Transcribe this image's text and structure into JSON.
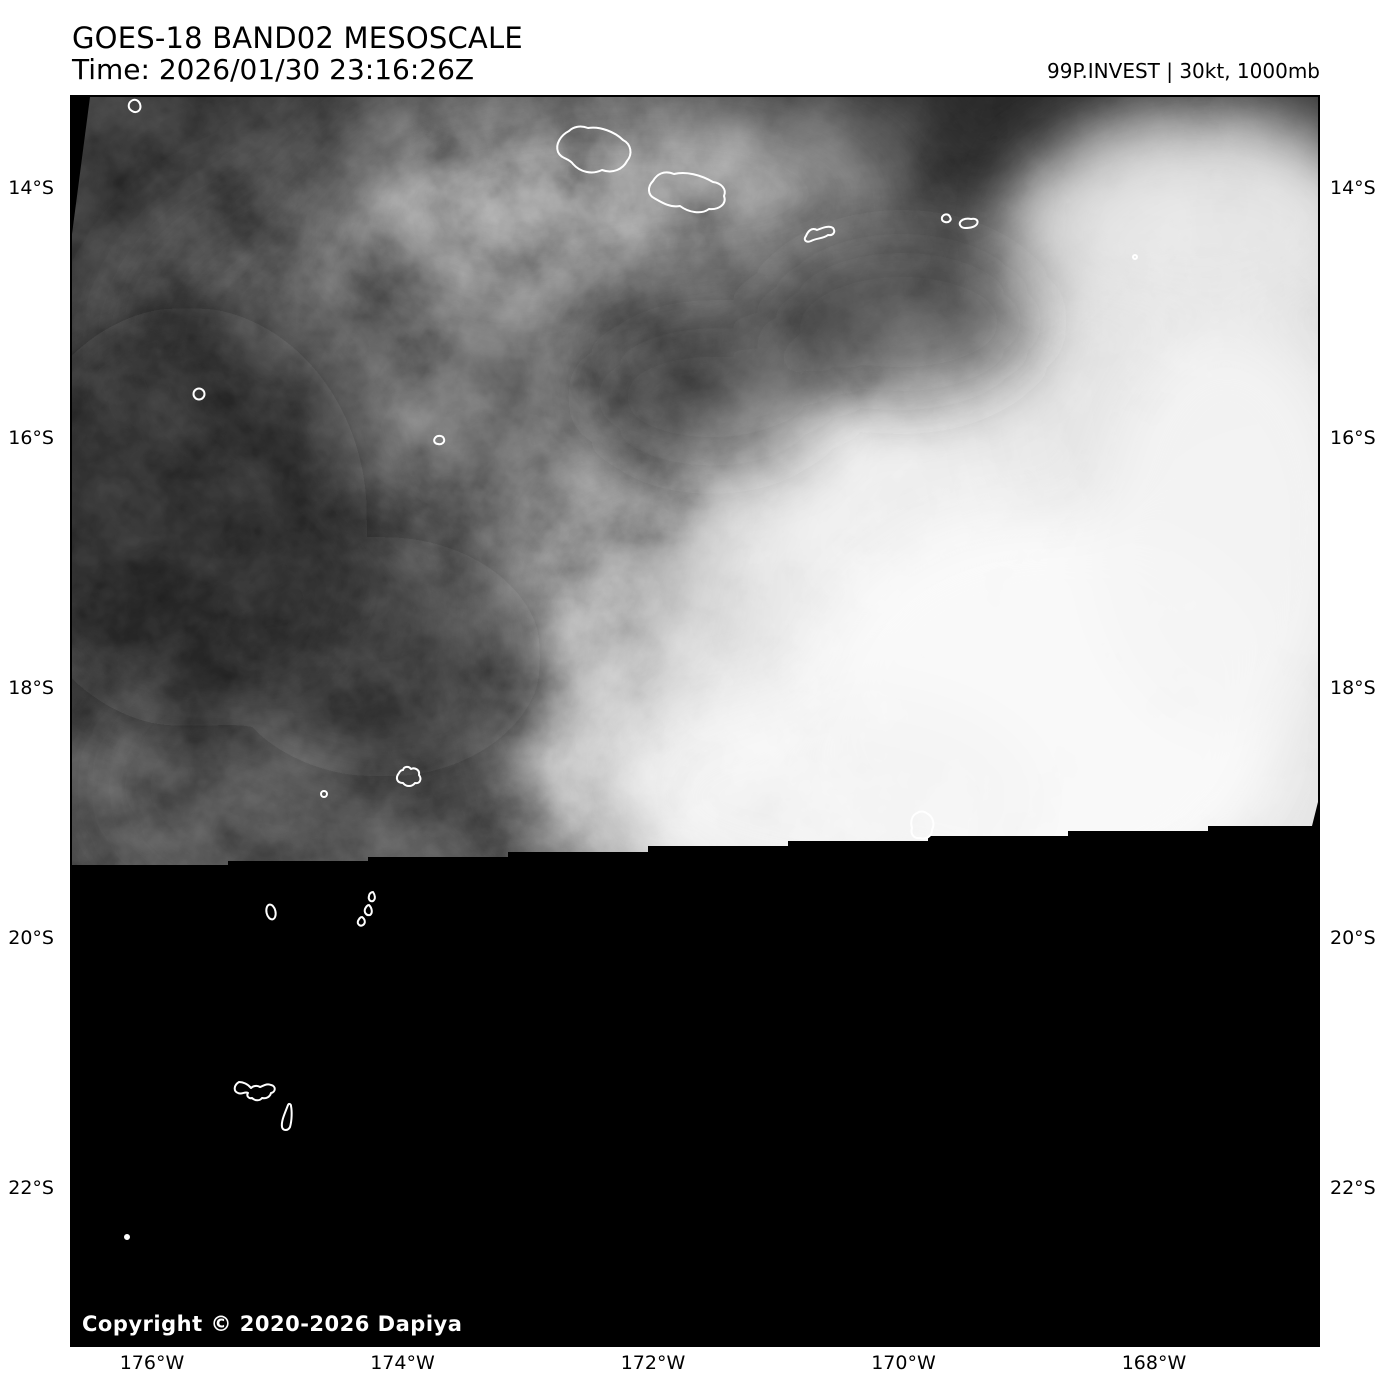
{
  "header": {
    "title": "GOES-18 BAND02 MESOSCALE",
    "time": "Time: 2026/01/30 23:16:26Z",
    "storm_info": "99P.INVEST | 30kt, 1000mb"
  },
  "product": {
    "satellite": "GOES-18",
    "band": "BAND02",
    "sector": "MESOSCALE",
    "timestamp": "2026/01/30 23:16:26Z",
    "storm_id": "99P.INVEST",
    "intensity": "30kt",
    "pressure": "1000mb"
  },
  "axes": {
    "latitude_labels": [
      "14°S",
      "16°S",
      "18°S",
      "20°S",
      "22°S"
    ],
    "longitude_labels": [
      "176°W",
      "174°W",
      "172°W",
      "170°W",
      "168°W"
    ]
  },
  "footer": {
    "copyright": "Copyright © 2020-2026 Dapiya"
  },
  "colors": {
    "page_background": "#ffffff",
    "map_no_data": "#000000",
    "coastline": "#ffffff",
    "text": "#000000",
    "copyright_text": "#ffffff"
  }
}
